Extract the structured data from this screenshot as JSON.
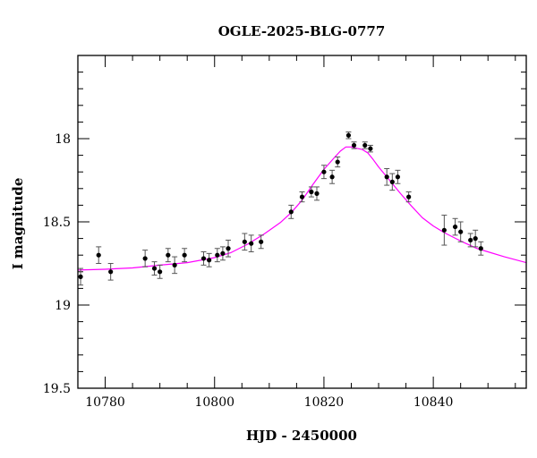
{
  "chart_data": {
    "type": "scatter",
    "title": "OGLE-2025-BLG-0777",
    "xlabel": "HJD - 2450000",
    "ylabel": "I magnitude",
    "xlim": [
      10775,
      10857
    ],
    "ylim": [
      19.5,
      17.5
    ],
    "y_inverted": true,
    "x_major_ticks": [
      10780,
      10800,
      10820,
      10840
    ],
    "x_minor_step": 5,
    "y_major_ticks": [
      18,
      18.5,
      19,
      19.5
    ],
    "y_major_tick_labels": [
      "18",
      "18.5",
      "19",
      "19.5"
    ],
    "y_minor_step": 0.1,
    "grid": false,
    "legend": "none",
    "colors": {
      "data": "#000000",
      "model": "#ff00ff",
      "axes": "#000000"
    },
    "series": [
      {
        "type": "scatter_errorbar",
        "points": [
          {
            "x": 10775.5,
            "y": 18.83,
            "err": 0.05
          },
          {
            "x": 10778.8,
            "y": 18.7,
            "err": 0.05
          },
          {
            "x": 10781.0,
            "y": 18.8,
            "err": 0.05
          },
          {
            "x": 10787.3,
            "y": 18.72,
            "err": 0.05
          },
          {
            "x": 10789.0,
            "y": 18.78,
            "err": 0.04
          },
          {
            "x": 10790.0,
            "y": 18.8,
            "err": 0.04
          },
          {
            "x": 10791.5,
            "y": 18.7,
            "err": 0.04
          },
          {
            "x": 10792.7,
            "y": 18.76,
            "err": 0.05
          },
          {
            "x": 10794.5,
            "y": 18.7,
            "err": 0.04
          },
          {
            "x": 10798.0,
            "y": 18.72,
            "err": 0.04
          },
          {
            "x": 10799.0,
            "y": 18.73,
            "err": 0.04
          },
          {
            "x": 10800.5,
            "y": 18.7,
            "err": 0.04
          },
          {
            "x": 10801.5,
            "y": 18.69,
            "err": 0.04
          },
          {
            "x": 10802.5,
            "y": 18.66,
            "err": 0.05
          },
          {
            "x": 10805.5,
            "y": 18.62,
            "err": 0.05
          },
          {
            "x": 10806.7,
            "y": 18.63,
            "err": 0.05
          },
          {
            "x": 10808.5,
            "y": 18.62,
            "err": 0.04
          },
          {
            "x": 10814.0,
            "y": 18.44,
            "err": 0.04
          },
          {
            "x": 10816.0,
            "y": 18.35,
            "err": 0.03
          },
          {
            "x": 10817.7,
            "y": 18.32,
            "err": 0.03
          },
          {
            "x": 10818.7,
            "y": 18.33,
            "err": 0.04
          },
          {
            "x": 10820.0,
            "y": 18.2,
            "err": 0.04
          },
          {
            "x": 10821.5,
            "y": 18.23,
            "err": 0.04
          },
          {
            "x": 10822.5,
            "y": 18.14,
            "err": 0.03
          },
          {
            "x": 10824.5,
            "y": 17.98,
            "err": 0.02
          },
          {
            "x": 10825.5,
            "y": 18.04,
            "err": 0.02
          },
          {
            "x": 10827.5,
            "y": 18.04,
            "err": 0.02
          },
          {
            "x": 10828.5,
            "y": 18.06,
            "err": 0.02
          },
          {
            "x": 10831.5,
            "y": 18.23,
            "err": 0.05
          },
          {
            "x": 10832.5,
            "y": 18.26,
            "err": 0.05
          },
          {
            "x": 10833.5,
            "y": 18.23,
            "err": 0.04
          },
          {
            "x": 10835.5,
            "y": 18.35,
            "err": 0.03
          },
          {
            "x": 10842.0,
            "y": 18.55,
            "err": 0.09
          },
          {
            "x": 10844.0,
            "y": 18.53,
            "err": 0.05
          },
          {
            "x": 10845.0,
            "y": 18.56,
            "err": 0.06
          },
          {
            "x": 10846.8,
            "y": 18.61,
            "err": 0.04
          },
          {
            "x": 10847.7,
            "y": 18.6,
            "err": 0.05
          },
          {
            "x": 10848.7,
            "y": 18.66,
            "err": 0.04
          }
        ]
      },
      {
        "type": "line",
        "x": [
          10775,
          10780,
          10785,
          10790,
          10795,
          10800,
          10803,
          10806,
          10809,
          10812,
          10814,
          10816,
          10818,
          10820,
          10822,
          10823,
          10824,
          10825,
          10826,
          10827,
          10828,
          10829,
          10830,
          10832,
          10834,
          10836,
          10838,
          10840,
          10842,
          10845,
          10848,
          10850,
          10853,
          10857
        ],
        "y": [
          18.79,
          18.785,
          18.777,
          18.76,
          18.745,
          18.715,
          18.685,
          18.635,
          18.575,
          18.505,
          18.445,
          18.37,
          18.275,
          18.185,
          18.11,
          18.075,
          18.05,
          18.05,
          18.058,
          18.065,
          18.085,
          18.125,
          18.17,
          18.25,
          18.33,
          18.405,
          18.475,
          18.525,
          18.565,
          18.615,
          18.66,
          18.68,
          18.71,
          18.745
        ]
      }
    ]
  }
}
